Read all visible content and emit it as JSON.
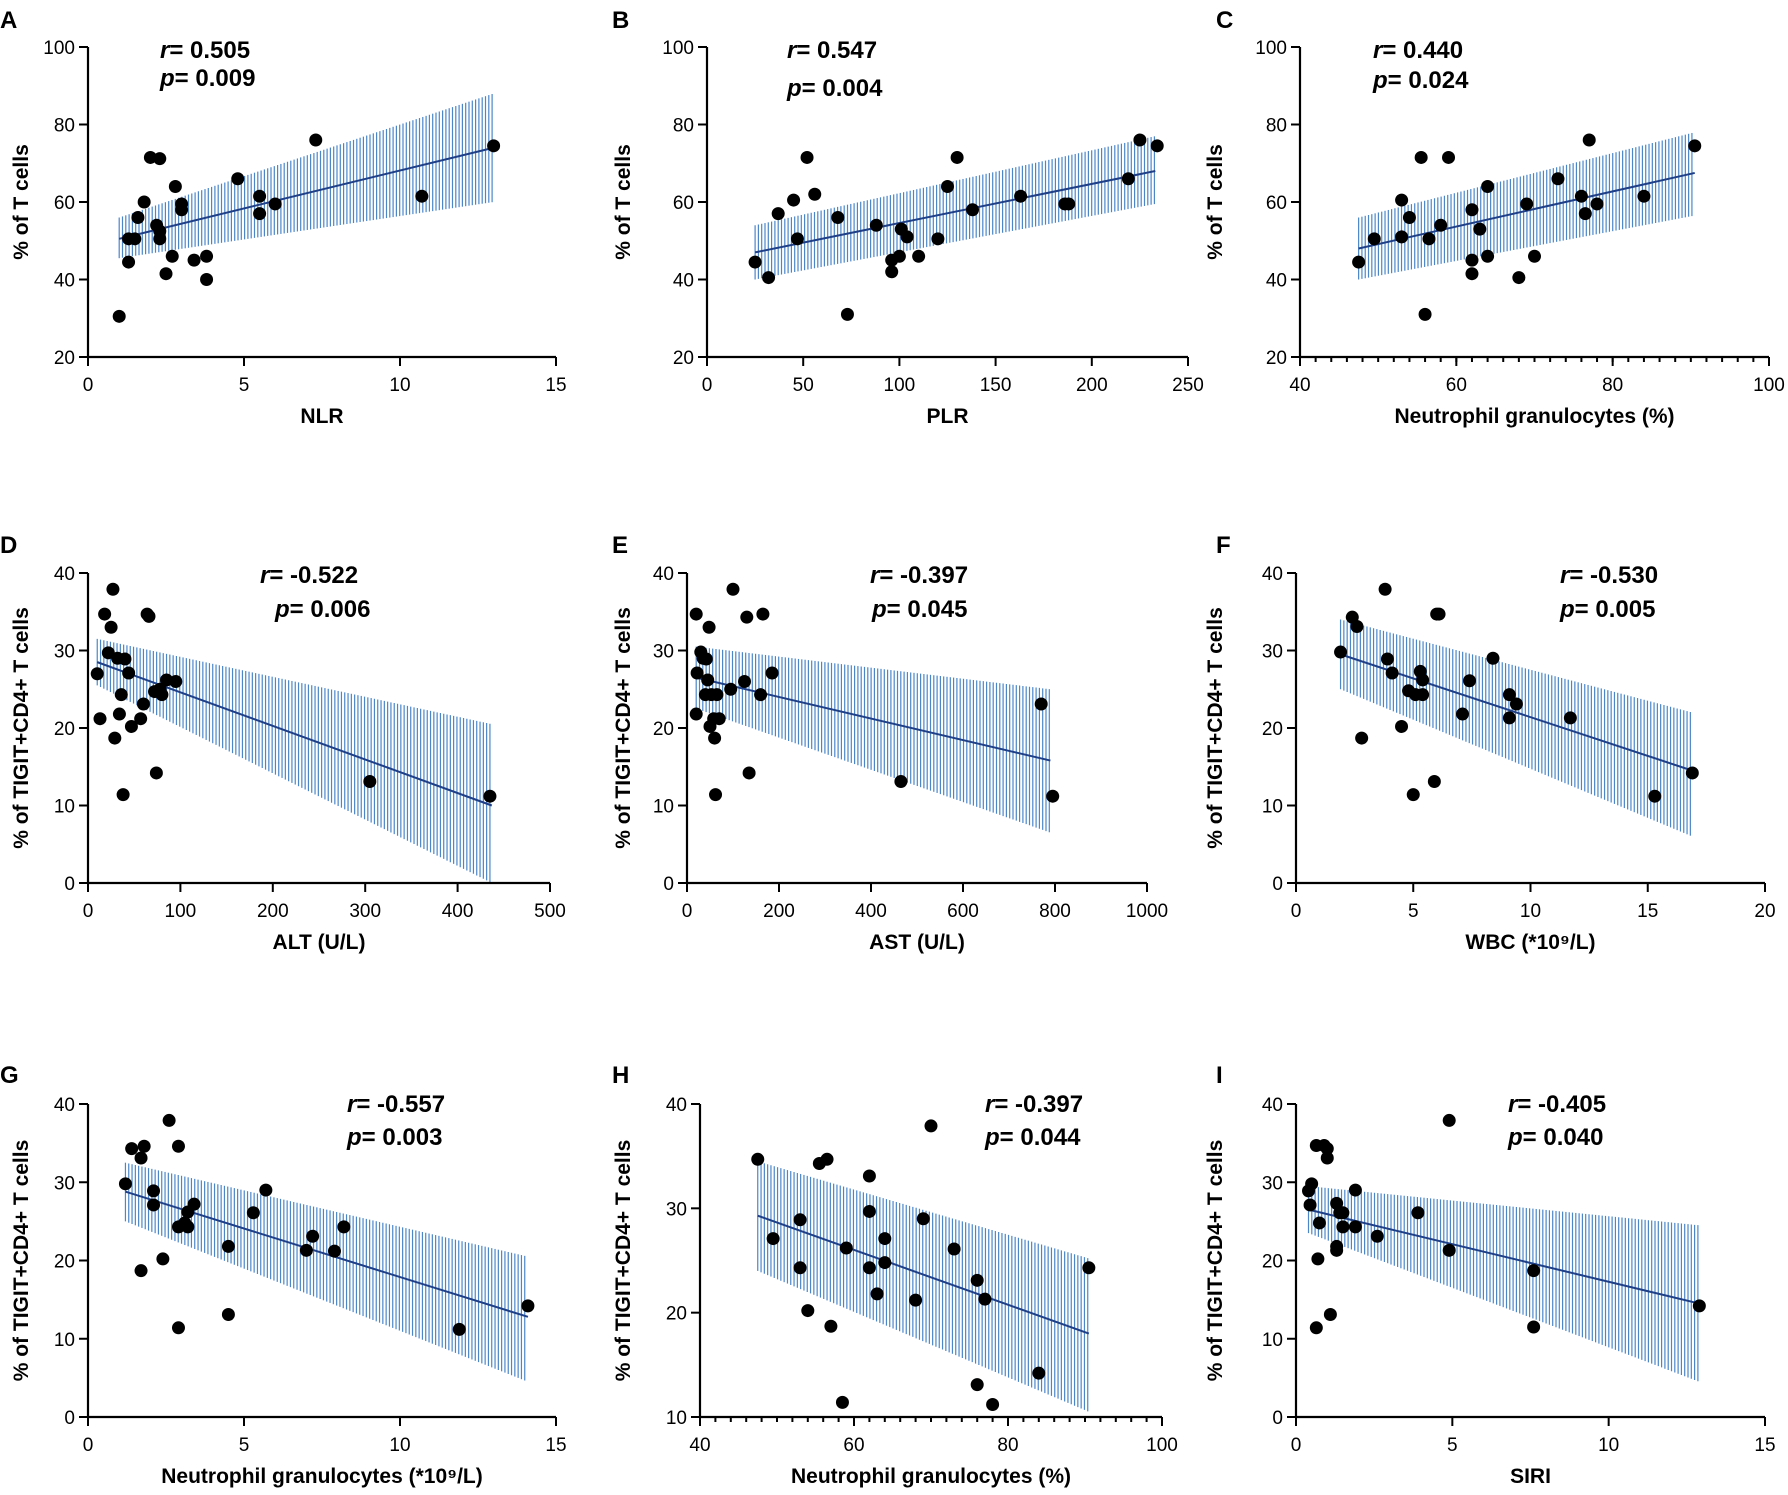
{
  "chart_data": [
    {
      "panel": "A",
      "type": "scatter",
      "xlabel": "NLR",
      "ylabel": "% of T cells",
      "xlim": [
        0,
        15
      ],
      "ylim": [
        20,
        100
      ],
      "xticks": [
        0,
        5,
        10,
        15
      ],
      "yticks": [
        20,
        40,
        60,
        80,
        100
      ],
      "minor_ticks": false,
      "r_label": "r",
      "r_text": "= 0.505",
      "p_label": "p",
      "p_text": "= 0.009",
      "fit": {
        "x": [
          1.0,
          13.0
        ],
        "y": [
          50.5,
          74.0
        ]
      },
      "band": {
        "lower": [
          45.5,
          60.0
        ],
        "upper": [
          56.0,
          88.0
        ]
      },
      "points": [
        [
          1.0,
          30.5
        ],
        [
          1.3,
          44.5
        ],
        [
          1.3,
          50.5
        ],
        [
          1.5,
          50.5
        ],
        [
          1.6,
          56
        ],
        [
          1.8,
          60
        ],
        [
          2.0,
          71.5
        ],
        [
          2.2,
          54
        ],
        [
          2.3,
          71.2
        ],
        [
          2.3,
          52.5
        ],
        [
          2.3,
          50.5
        ],
        [
          2.5,
          41.5
        ],
        [
          2.7,
          46
        ],
        [
          2.8,
          64
        ],
        [
          3.0,
          59.5
        ],
        [
          3.0,
          58
        ],
        [
          3.4,
          45
        ],
        [
          3.8,
          40
        ],
        [
          3.8,
          46
        ],
        [
          4.8,
          66
        ],
        [
          5.5,
          61.5
        ],
        [
          5.5,
          57
        ],
        [
          6.0,
          59.5
        ],
        [
          7.3,
          76
        ],
        [
          10.7,
          61.5
        ],
        [
          13.0,
          74.5
        ]
      ]
    },
    {
      "panel": "B",
      "type": "scatter",
      "xlabel": "PLR",
      "ylabel": "% of T cells",
      "xlim": [
        0,
        250
      ],
      "ylim": [
        20,
        100
      ],
      "xticks": [
        0,
        50,
        100,
        150,
        200,
        250
      ],
      "yticks": [
        20,
        40,
        60,
        80,
        100
      ],
      "minor_ticks": false,
      "r_label": "r",
      "r_text": "= 0.547",
      "p_label": "p",
      "p_text": "= 0.004",
      "fit": {
        "x": [
          25,
          233
        ],
        "y": [
          47.0,
          68.0
        ]
      },
      "band": {
        "lower": [
          40.0,
          59.5
        ],
        "upper": [
          54.0,
          77.0
        ]
      },
      "points": [
        [
          25,
          44.5
        ],
        [
          32,
          40.5
        ],
        [
          37,
          57
        ],
        [
          45,
          60.5
        ],
        [
          47,
          50.5
        ],
        [
          52,
          71.5
        ],
        [
          56,
          62
        ],
        [
          68,
          56
        ],
        [
          73,
          31
        ],
        [
          88,
          54
        ],
        [
          96,
          42
        ],
        [
          96,
          45
        ],
        [
          100,
          46
        ],
        [
          101,
          53
        ],
        [
          104,
          51
        ],
        [
          110,
          46
        ],
        [
          120,
          50.5
        ],
        [
          125,
          64
        ],
        [
          130,
          71.5
        ],
        [
          138,
          58
        ],
        [
          163,
          61.5
        ],
        [
          186,
          59.5
        ],
        [
          188,
          59.5
        ],
        [
          219,
          66
        ],
        [
          225,
          76
        ],
        [
          234,
          74.5
        ]
      ]
    },
    {
      "panel": "C",
      "type": "scatter",
      "xlabel": "Neutrophil granulocytes (%)",
      "ylabel": "% of T cells",
      "xlim": [
        40,
        100
      ],
      "ylim": [
        20,
        100
      ],
      "xticks": [
        40,
        60,
        80,
        100
      ],
      "yticks": [
        20,
        40,
        60,
        80,
        100
      ],
      "minor_ticks": true,
      "r_label": "r",
      "r_text": "= 0.440",
      "p_label": "p",
      "p_text": "= 0.024",
      "fit": {
        "x": [
          47.5,
          90.5
        ],
        "y": [
          48.0,
          67.5
        ]
      },
      "band": {
        "lower": [
          40.0,
          56.5
        ],
        "upper": [
          56.0,
          78.0
        ]
      },
      "points": [
        [
          47.5,
          44.5
        ],
        [
          49.5,
          50.5
        ],
        [
          53,
          51
        ],
        [
          53,
          60.5
        ],
        [
          54,
          56
        ],
        [
          55.5,
          71.5
        ],
        [
          56,
          31
        ],
        [
          56.5,
          50.5
        ],
        [
          58,
          54
        ],
        [
          59,
          71.5
        ],
        [
          62,
          58
        ],
        [
          62,
          45
        ],
        [
          62,
          41.5
        ],
        [
          63,
          53
        ],
        [
          64,
          46
        ],
        [
          64,
          64
        ],
        [
          68,
          40.5
        ],
        [
          69,
          59.5
        ],
        [
          70,
          46
        ],
        [
          73,
          66
        ],
        [
          76,
          61.5
        ],
        [
          76.5,
          57
        ],
        [
          77,
          76
        ],
        [
          78,
          59.5
        ],
        [
          84,
          61.5
        ],
        [
          90.5,
          74.5
        ]
      ]
    },
    {
      "panel": "D",
      "type": "scatter",
      "xlabel": "ALT (U/L)",
      "ylabel": "% of TIGIT+CD4+ T cells",
      "xlim": [
        0,
        500
      ],
      "ylim": [
        0,
        40
      ],
      "xticks": [
        0,
        100,
        200,
        300,
        400,
        500
      ],
      "yticks": [
        0,
        10,
        20,
        30,
        40
      ],
      "minor_ticks": false,
      "r_label": "r",
      "r_text": "= -0.522",
      "p_label": "p",
      "p_text": "= 0.006",
      "fit": {
        "x": [
          10,
          437
        ],
        "y": [
          28.5,
          10.0
        ]
      },
      "band": {
        "lower": [
          25.5,
          0.0
        ],
        "upper": [
          31.5,
          20.5
        ]
      },
      "points": [
        [
          10,
          27
        ],
        [
          13,
          21.2
        ],
        [
          18,
          34.7
        ],
        [
          22,
          29.7
        ],
        [
          25,
          33
        ],
        [
          27,
          37.9
        ],
        [
          29,
          18.7
        ],
        [
          32,
          29
        ],
        [
          34,
          21.8
        ],
        [
          36,
          24.3
        ],
        [
          38,
          11.4
        ],
        [
          40,
          28.9
        ],
        [
          44,
          27.1
        ],
        [
          47,
          20.2
        ],
        [
          57,
          21.2
        ],
        [
          60,
          23.1
        ],
        [
          64,
          34.7
        ],
        [
          66,
          34.4
        ],
        [
          72,
          24.7
        ],
        [
          74,
          14.2
        ],
        [
          78,
          25
        ],
        [
          80,
          24.3
        ],
        [
          85,
          26.2
        ],
        [
          95,
          26
        ],
        [
          305,
          13.1
        ],
        [
          435,
          11.2
        ]
      ]
    },
    {
      "panel": "E",
      "type": "scatter",
      "xlabel": "AST (U/L)",
      "ylabel": "% of TIGIT+CD4+ T cells",
      "xlim": [
        0,
        1000
      ],
      "ylim": [
        0,
        40
      ],
      "xticks": [
        0,
        200,
        400,
        600,
        800,
        1000
      ],
      "yticks": [
        0,
        10,
        20,
        30,
        40
      ],
      "minor_ticks": false,
      "r_label": "r",
      "r_text": "= -0.397",
      "p_label": "p",
      "p_text": "= 0.045",
      "fit": {
        "x": [
          20,
          790
        ],
        "y": [
          26.5,
          15.8
        ]
      },
      "band": {
        "lower": [
          22.5,
          6.5
        ],
        "upper": [
          30.5,
          25.0
        ]
      },
      "points": [
        [
          20,
          34.7
        ],
        [
          20,
          21.8
        ],
        [
          22,
          27.1
        ],
        [
          30,
          29.8
        ],
        [
          35,
          29
        ],
        [
          40,
          24.3
        ],
        [
          42,
          28.9
        ],
        [
          45,
          26.2
        ],
        [
          48,
          33
        ],
        [
          50,
          20.2
        ],
        [
          53,
          24.3
        ],
        [
          58,
          21.2
        ],
        [
          60,
          18.7
        ],
        [
          62,
          11.4
        ],
        [
          65,
          24.3
        ],
        [
          70,
          21.2
        ],
        [
          95,
          25
        ],
        [
          100,
          37.9
        ],
        [
          125,
          26
        ],
        [
          130,
          34.3
        ],
        [
          135,
          14.2
        ],
        [
          160,
          24.3
        ],
        [
          165,
          34.7
        ],
        [
          185,
          27.1
        ],
        [
          465,
          13.1
        ],
        [
          770,
          23.1
        ],
        [
          795,
          11.2
        ]
      ]
    },
    {
      "panel": "F",
      "type": "scatter",
      "xlabel": "WBC (*10⁹/L)",
      "ylabel": "% of TIGIT+CD4+ T cells",
      "xlim": [
        0,
        20
      ],
      "ylim": [
        0,
        40
      ],
      "xticks": [
        0,
        5,
        10,
        15,
        20
      ],
      "yticks": [
        0,
        10,
        20,
        30,
        40
      ],
      "minor_ticks": false,
      "r_label": "r",
      "r_text": "= -0.530",
      "p_label": "p",
      "p_text": "= 0.005",
      "fit": {
        "x": [
          1.9,
          16.9
        ],
        "y": [
          29.5,
          14.5
        ]
      },
      "band": {
        "lower": [
          25.0,
          6.0
        ],
        "upper": [
          34.0,
          22.0
        ]
      },
      "points": [
        [
          1.9,
          29.8
        ],
        [
          2.4,
          34.3
        ],
        [
          2.6,
          33.1
        ],
        [
          2.8,
          18.7
        ],
        [
          3.8,
          37.9
        ],
        [
          3.9,
          28.9
        ],
        [
          4.1,
          27.1
        ],
        [
          4.5,
          20.2
        ],
        [
          4.8,
          24.8
        ],
        [
          5.0,
          11.4
        ],
        [
          5.1,
          24.3
        ],
        [
          5.3,
          27.3
        ],
        [
          5.4,
          26.2
        ],
        [
          5.4,
          24.3
        ],
        [
          5.9,
          13.1
        ],
        [
          6.0,
          34.7
        ],
        [
          6.1,
          34.7
        ],
        [
          7.1,
          21.8
        ],
        [
          7.4,
          26.1
        ],
        [
          8.4,
          29
        ],
        [
          9.1,
          24.3
        ],
        [
          9.1,
          21.3
        ],
        [
          9.4,
          23.1
        ],
        [
          11.7,
          21.3
        ],
        [
          15.3,
          11.2
        ],
        [
          16.9,
          14.2
        ]
      ]
    },
    {
      "panel": "G",
      "type": "scatter",
      "xlabel": "Neutrophil granulocytes (*10⁹/L)",
      "ylabel": "% of TIGIT+CD4+ T cells",
      "xlim": [
        0,
        15
      ],
      "ylim": [
        0,
        40
      ],
      "xticks": [
        0,
        5,
        10,
        15
      ],
      "yticks": [
        0,
        10,
        20,
        30,
        40
      ],
      "minor_ticks": false,
      "r_label": "r",
      "r_text": "= -0.557",
      "p_label": "p",
      "p_text": "= 0.003",
      "fit": {
        "x": [
          1.2,
          14.1
        ],
        "y": [
          28.8,
          12.8
        ]
      },
      "band": {
        "lower": [
          25.0,
          4.5
        ],
        "upper": [
          32.5,
          20.5
        ]
      },
      "points": [
        [
          1.2,
          29.8
        ],
        [
          1.4,
          34.3
        ],
        [
          1.7,
          33.1
        ],
        [
          1.7,
          18.7
        ],
        [
          1.8,
          34.6
        ],
        [
          2.1,
          28.9
        ],
        [
          2.1,
          27.1
        ],
        [
          2.4,
          20.2
        ],
        [
          2.6,
          37.9
        ],
        [
          2.9,
          24.3
        ],
        [
          2.9,
          11.4
        ],
        [
          2.9,
          34.6
        ],
        [
          3.1,
          24.8
        ],
        [
          3.2,
          24.3
        ],
        [
          3.2,
          26.2
        ],
        [
          3.4,
          27.2
        ],
        [
          4.5,
          21.8
        ],
        [
          4.5,
          13.1
        ],
        [
          5.3,
          26.1
        ],
        [
          5.7,
          29
        ],
        [
          7.0,
          21.3
        ],
        [
          7.2,
          23.1
        ],
        [
          7.9,
          21.2
        ],
        [
          8.2,
          24.3
        ],
        [
          11.9,
          11.2
        ],
        [
          14.1,
          14.2
        ]
      ]
    },
    {
      "panel": "H",
      "type": "scatter",
      "xlabel": "Neutrophil granulocytes (%)",
      "ylabel": "% of TIGIT+CD4+ T cells",
      "xlim": [
        40,
        100
      ],
      "ylim": [
        10,
        40
      ],
      "xticks": [
        40,
        60,
        80,
        100
      ],
      "yticks": [
        10,
        20,
        30,
        40
      ],
      "minor_ticks": true,
      "r_label": "r",
      "r_text": "= -0.397",
      "p_label": "p",
      "p_text": "= 0.044",
      "fit": {
        "x": [
          47.5,
          90.5
        ],
        "y": [
          29.3,
          18.0
        ]
      },
      "band": {
        "lower": [
          24.0,
          10.5
        ],
        "upper": [
          34.5,
          25.2
        ]
      },
      "points": [
        [
          47.5,
          34.7
        ],
        [
          49.5,
          27.1
        ],
        [
          53,
          28.9
        ],
        [
          53,
          24.3
        ],
        [
          54,
          20.2
        ],
        [
          55.5,
          34.3
        ],
        [
          56.5,
          34.7
        ],
        [
          57,
          18.7
        ],
        [
          58.5,
          11.4
        ],
        [
          59,
          26.2
        ],
        [
          62,
          33.1
        ],
        [
          62,
          29.7
        ],
        [
          62,
          24.3
        ],
        [
          63,
          21.8
        ],
        [
          64,
          24.8
        ],
        [
          64,
          27.1
        ],
        [
          68,
          21.2
        ],
        [
          69,
          29
        ],
        [
          70,
          37.9
        ],
        [
          73,
          26.1
        ],
        [
          76,
          23.1
        ],
        [
          76,
          13.1
        ],
        [
          77,
          21.3
        ],
        [
          78,
          11.2
        ],
        [
          84,
          14.2
        ],
        [
          90.5,
          24.3
        ]
      ]
    },
    {
      "panel": "I",
      "type": "scatter",
      "xlabel": "SIRI",
      "ylabel": "% of TIGIT+CD4+ T cells",
      "xlim": [
        0,
        15
      ],
      "ylim": [
        0,
        40
      ],
      "xticks": [
        0,
        5,
        10,
        15
      ],
      "yticks": [
        0,
        10,
        20,
        30,
        40
      ],
      "minor_ticks": false,
      "r_label": "r",
      "r_text": "= -0.405",
      "p_label": "p",
      "p_text": "= 0.040",
      "fit": {
        "x": [
          0.4,
          12.9
        ],
        "y": [
          26.5,
          14.5
        ]
      },
      "band": {
        "lower": [
          23.5,
          4.5
        ],
        "upper": [
          29.5,
          24.5
        ]
      },
      "points": [
        [
          0.4,
          28.9
        ],
        [
          0.45,
          27.1
        ],
        [
          0.5,
          29.8
        ],
        [
          0.65,
          34.7
        ],
        [
          0.65,
          11.4
        ],
        [
          0.7,
          20.2
        ],
        [
          0.75,
          24.8
        ],
        [
          0.9,
          34.7
        ],
        [
          1.0,
          34.3
        ],
        [
          1.0,
          33.1
        ],
        [
          1.1,
          13.1
        ],
        [
          1.3,
          21.3
        ],
        [
          1.3,
          27.3
        ],
        [
          1.3,
          21.8
        ],
        [
          1.4,
          26.1
        ],
        [
          1.5,
          24.3
        ],
        [
          1.5,
          26.1
        ],
        [
          1.9,
          24.3
        ],
        [
          1.9,
          29
        ],
        [
          2.6,
          23.1
        ],
        [
          3.9,
          26.1
        ],
        [
          4.9,
          37.9
        ],
        [
          4.9,
          21.3
        ],
        [
          7.6,
          18.7
        ],
        [
          7.6,
          11.5
        ],
        [
          12.9,
          14.2
        ]
      ]
    }
  ]
}
